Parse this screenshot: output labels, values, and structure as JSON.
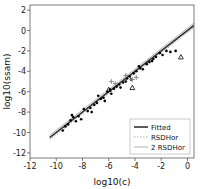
{
  "chart_data": {
    "type": "scatter",
    "xlabel": "log10(c)",
    "ylabel": "log10(ssam)",
    "xlim": [
      -12,
      0.5
    ],
    "ylim": [
      -12.5,
      2.5
    ],
    "xticks": [
      -12,
      -10,
      -8,
      -6,
      -4,
      -2,
      0
    ],
    "yticks": [
      -12,
      -10,
      -8,
      -6,
      -4,
      -2,
      0,
      2
    ],
    "legend": "lower right",
    "series": [
      {
        "name": "2 RSDHor",
        "type": "line",
        "color": "#aaaaaa",
        "line_style": "solid",
        "x": [
          -10.5,
          0.5
        ],
        "values": [
          -10.28,
          0.72
        ]
      },
      {
        "name": "RSDHor",
        "type": "line",
        "color": "#aaaaaa",
        "line_style": "dotted",
        "x": [
          -10.5,
          0.5
        ],
        "values": [
          -10.72,
          0.28
        ]
      },
      {
        "name": "Fitted",
        "type": "line",
        "color": "#333333",
        "line_style": "solid",
        "x": [
          -10.5,
          0.5
        ],
        "values": [
          -10.5,
          0.5
        ]
      },
      {
        "type": "scatter",
        "color": "black",
        "marker": "circle",
        "x": [
          -9.5,
          -9.3,
          -9.1,
          -8.9,
          -8.7,
          -8.5,
          -8.3,
          -8.1,
          -7.9,
          -7.6,
          -7.4,
          -7.1,
          -6.9,
          -6.6,
          -6.4,
          -6.3,
          -6.1,
          -5.9,
          -5.8,
          -5.6,
          -5.4,
          -5.2,
          -5.1,
          -4.9,
          -4.6,
          -4.4,
          -4.3,
          -4.1,
          -3.9,
          -3.6,
          -3.4,
          -3.1,
          -2.9,
          -2.6,
          -2.4,
          -2.1,
          -1.9,
          -1.6,
          -1.3,
          -0.9,
          -8.8,
          -7.3,
          -6.8,
          -4.7,
          -3.7,
          -2.7
        ],
        "values": [
          -9.8,
          -9.4,
          -9.2,
          -8.8,
          -8.5,
          -8.9,
          -8.4,
          -8.7,
          -7.7,
          -7.9,
          -7.6,
          -7.3,
          -7.1,
          -6.7,
          -6.6,
          -6.9,
          -6.0,
          -5.8,
          -6.2,
          -5.7,
          -5.5,
          -5.3,
          -5.6,
          -5.1,
          -4.7,
          -4.5,
          -4.8,
          -4.2,
          -4.0,
          -3.7,
          -3.8,
          -3.3,
          -3.1,
          -2.8,
          -2.6,
          -2.2,
          -2.4,
          -2.0,
          -2.1,
          -2.0,
          -8.3,
          -8.0,
          -6.4,
          -5.0,
          -3.5,
          -3.0
        ]
      },
      {
        "type": "scatter",
        "color": "black",
        "marker": "triangle-open",
        "x": [
          -6.0,
          -4.2,
          -0.5
        ],
        "values": [
          -5.8,
          -5.6,
          -2.6
        ]
      },
      {
        "type": "scatter",
        "color": "gray",
        "marker": "plus",
        "x": [
          -5.8,
          -5.5,
          -4.7,
          -4.2,
          -3.9
        ],
        "values": [
          -5.0,
          -5.2,
          -4.4,
          -4.8,
          -4.6
        ]
      }
    ]
  }
}
